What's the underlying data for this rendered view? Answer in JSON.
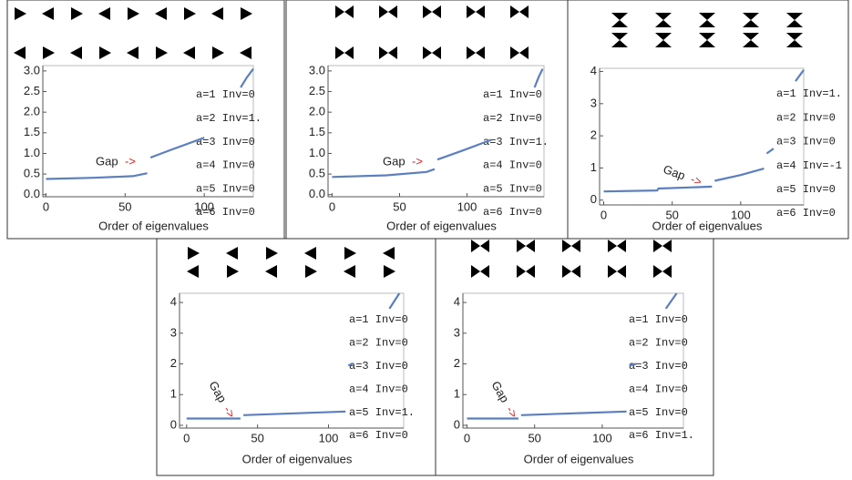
{
  "chart_data": [
    {
      "type": "line",
      "xlabel": "Order of eigenvalues",
      "color": "#5b7fbf",
      "xlim": [
        -2,
        131
      ],
      "ylim": [
        -0.05,
        3.13
      ],
      "xticks": [
        0,
        50,
        100
      ],
      "yticks": [
        {
          "value": 0,
          "label": "0.0"
        },
        0.5,
        {
          "value": 1,
          "label": "1.0"
        },
        1.5,
        {
          "value": 2,
          "label": "2.0"
        },
        2.5,
        {
          "value": 3,
          "label": "3.0"
        }
      ],
      "x": [
        0,
        30,
        55,
        64,
        65,
        66,
        80,
        100,
        101,
        123,
        127,
        131
      ],
      "values": [
        0.38,
        0.41,
        0.45,
        0.52,
        null,
        0.9,
        1.1,
        1.38,
        null,
        2.6,
        2.85,
        3.05
      ],
      "annotation": {
        "text": "Gap",
        "arrow": "->"
      },
      "labels": [
        "a=1 Inv=0",
        "a=2 Inv=1.",
        "a=3 Inv=0",
        "a=4 Inv=0",
        "a=5 Inv=0",
        "a=6 Inv=0"
      ]
    },
    {
      "type": "line",
      "xlabel": "Order of eigenvalues",
      "color": "#5b7fbf",
      "xlim": [
        -3,
        157
      ],
      "ylim": [
        -0.05,
        3.13
      ],
      "xticks": [
        0,
        50,
        100
      ],
      "yticks": [
        {
          "value": 0,
          "label": "0.0"
        },
        0.5,
        {
          "value": 1,
          "label": "1.0"
        },
        1.5,
        {
          "value": 2,
          "label": "2.0"
        },
        2.5,
        {
          "value": 3,
          "label": "3.0"
        }
      ],
      "x": [
        0,
        40,
        70,
        76,
        77,
        78,
        95,
        118,
        119,
        150,
        153,
        156
      ],
      "values": [
        0.43,
        0.47,
        0.55,
        0.62,
        null,
        0.85,
        1.05,
        1.33,
        null,
        2.6,
        2.85,
        3.05
      ],
      "annotation": {
        "text": "Gap",
        "arrow": "->"
      },
      "labels": [
        "a=1 Inv=0",
        "a=2 Inv=0",
        "a=3 Inv=1.",
        "a=4 Inv=0",
        "a=5 Inv=0",
        "a=6 Inv=0"
      ]
    },
    {
      "type": "line",
      "xlabel": "Order of eigenvalues",
      "color": "#5b7fbf",
      "xlim": [
        -3,
        146
      ],
      "ylim": [
        -0.15,
        4.1
      ],
      "xticks": [
        0,
        50,
        100
      ],
      "yticks": [
        0,
        1,
        2,
        3,
        4
      ],
      "x": [
        0,
        39,
        40,
        79,
        80,
        81,
        100,
        117,
        118,
        119,
        124,
        125,
        140,
        146
      ],
      "values": [
        0.27,
        0.3,
        0.36,
        0.42,
        null,
        0.6,
        0.78,
        0.98,
        null,
        1.45,
        1.6,
        null,
        3.7,
        4.05
      ],
      "annotation": {
        "text": "Gap",
        "arrow": "->"
      },
      "labels": [
        "a=1 Inv=1.",
        "a=2 Inv=0",
        "a=3 Inv=0",
        "a=4 Inv=-1",
        "a=5 Inv=0",
        "a=6 Inv=0"
      ]
    },
    {
      "type": "line",
      "xlabel": "Order of eigenvalues",
      "color": "#5b7fbf",
      "xlim": [
        -5,
        153
      ],
      "ylim": [
        -0.09,
        4.3
      ],
      "xticks": [
        0,
        50,
        100
      ],
      "yticks": [
        0,
        1,
        2,
        3,
        4
      ],
      "x": [
        0,
        38,
        39,
        40,
        112,
        113,
        114,
        117,
        118,
        143,
        150
      ],
      "values": [
        0.22,
        0.22,
        null,
        0.33,
        0.45,
        null,
        1.95,
        2.0,
        null,
        3.8,
        4.3
      ],
      "annotation": {
        "text": "Gap",
        "arrow": "->"
      },
      "labels": [
        "a=1 Inv=0",
        "a=2 Inv=0",
        "a=3 Inv=0",
        "a=4 Inv=0",
        "a=5 Inv=1.",
        "a=6 Inv=0"
      ]
    },
    {
      "type": "line",
      "xlabel": "Order of eigenvalues",
      "color": "#5b7fbf",
      "xlim": [
        -3,
        160
      ],
      "ylim": [
        -0.09,
        4.3
      ],
      "xticks": [
        0,
        50,
        100
      ],
      "yticks": [
        0,
        1,
        2,
        3,
        4
      ],
      "x": [
        0,
        38,
        39,
        40,
        118,
        119,
        120,
        125,
        126,
        147,
        155
      ],
      "values": [
        0.22,
        0.22,
        null,
        0.33,
        0.45,
        null,
        1.95,
        2.0,
        null,
        3.8,
        4.3
      ],
      "annotation": {
        "text": "Gap",
        "arrow": "->"
      },
      "labels": [
        "a=1 Inv=0",
        "a=2 Inv=0",
        "a=3 Inv=0",
        "a=4 Inv=0",
        "a=5 Inv=0",
        "a=6 Inv=1."
      ]
    }
  ]
}
